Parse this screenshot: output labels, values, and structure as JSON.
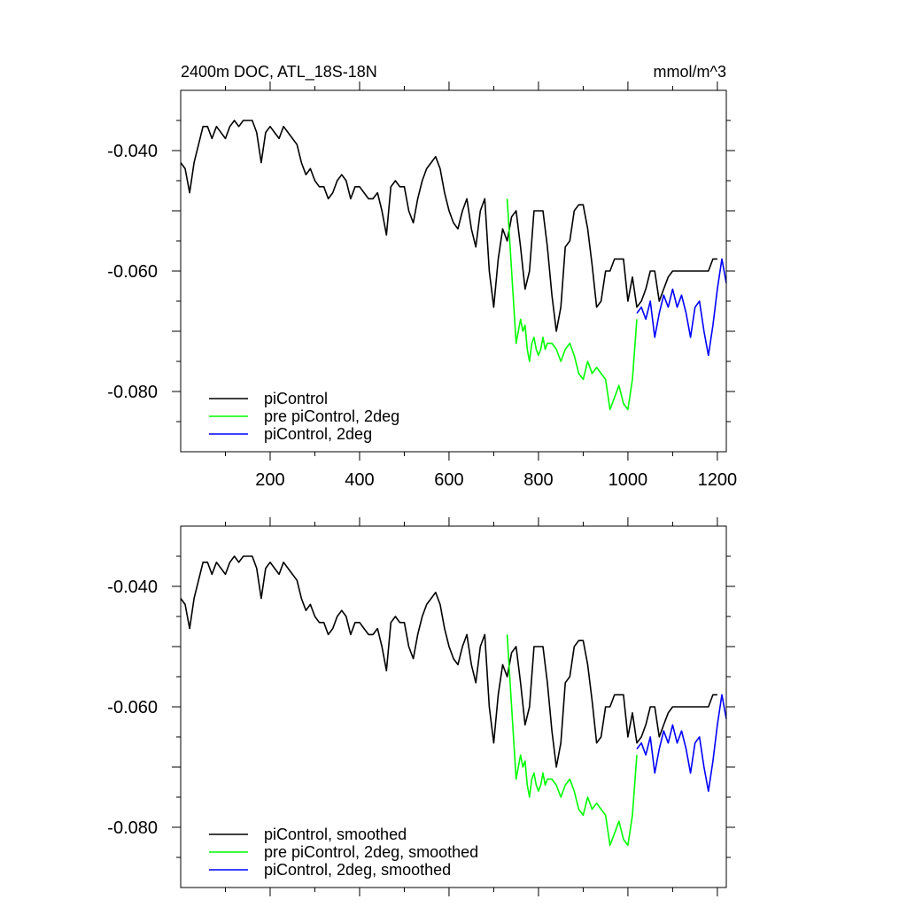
{
  "colors": {
    "piControl": "#000000",
    "pre_piControl_2deg": "#00ff00",
    "piControl_2deg": "#0000ff"
  },
  "chart_data": [
    {
      "type": "line",
      "title": "2400m DOC, ATL_18S-18N",
      "units": "mmol/m^3",
      "xlim": [
        0,
        1220
      ],
      "ylim": [
        -0.09,
        -0.03
      ],
      "x_ticks": [
        200,
        400,
        600,
        800,
        1000,
        1200
      ],
      "x_tick_labels": [
        "200",
        "400",
        "600",
        "800",
        "1000",
        "1200"
      ],
      "y_ticks": [
        -0.04,
        -0.06,
        -0.08
      ],
      "y_tick_labels": [
        "-0.040",
        "-0.060",
        "-0.080"
      ],
      "legend_position": "bottom-left",
      "series": [
        {
          "name": "piControl",
          "color": "#000000",
          "x": [
            0,
            10,
            20,
            30,
            50,
            60,
            70,
            80,
            100,
            110,
            120,
            130,
            140,
            150,
            160,
            170,
            180,
            190,
            200,
            210,
            220,
            230,
            240,
            250,
            260,
            270,
            280,
            290,
            300,
            310,
            320,
            330,
            340,
            350,
            360,
            370,
            380,
            390,
            400,
            410,
            420,
            430,
            440,
            450,
            460,
            470,
            480,
            490,
            500,
            510,
            520,
            530,
            540,
            550,
            560,
            570,
            580,
            590,
            600,
            610,
            620,
            630,
            640,
            650,
            660,
            670,
            680,
            690,
            700,
            710,
            720,
            730,
            740,
            750,
            760,
            770,
            780,
            790,
            800,
            810,
            820,
            830,
            840,
            850,
            860,
            870,
            880,
            890,
            900,
            910,
            920,
            930,
            940,
            950,
            960,
            970,
            980,
            990,
            1000,
            1010,
            1020,
            1030,
            1040,
            1050,
            1060,
            1070,
            1080,
            1090,
            1100,
            1110,
            1120,
            1130,
            1140,
            1150,
            1160,
            1170,
            1180,
            1190,
            1200
          ],
          "y": [
            -0.042,
            -0.043,
            -0.047,
            -0.042,
            -0.036,
            -0.036,
            -0.038,
            -0.036,
            -0.038,
            -0.036,
            -0.035,
            -0.036,
            -0.035,
            -0.035,
            -0.035,
            -0.037,
            -0.042,
            -0.037,
            -0.036,
            -0.037,
            -0.038,
            -0.036,
            -0.037,
            -0.038,
            -0.039,
            -0.042,
            -0.044,
            -0.043,
            -0.045,
            -0.046,
            -0.046,
            -0.048,
            -0.047,
            -0.045,
            -0.044,
            -0.045,
            -0.048,
            -0.046,
            -0.046,
            -0.047,
            -0.048,
            -0.048,
            -0.047,
            -0.05,
            -0.054,
            -0.046,
            -0.045,
            -0.046,
            -0.046,
            -0.05,
            -0.052,
            -0.048,
            -0.045,
            -0.043,
            -0.042,
            -0.041,
            -0.043,
            -0.047,
            -0.05,
            -0.052,
            -0.053,
            -0.05,
            -0.048,
            -0.053,
            -0.056,
            -0.05,
            -0.048,
            -0.06,
            -0.066,
            -0.058,
            -0.053,
            -0.055,
            -0.051,
            -0.05,
            -0.056,
            -0.063,
            -0.06,
            -0.05,
            -0.05,
            -0.05,
            -0.056,
            -0.064,
            -0.07,
            -0.066,
            -0.056,
            -0.055,
            -0.05,
            -0.049,
            -0.049,
            -0.053,
            -0.059,
            -0.066,
            -0.065,
            -0.06,
            -0.06,
            -0.058,
            -0.058,
            -0.058,
            -0.065,
            -0.061,
            -0.066,
            -0.065,
            -0.063,
            -0.06,
            -0.06,
            -0.065,
            -0.063,
            -0.061,
            -0.06,
            -0.06,
            -0.06,
            -0.06,
            -0.06,
            -0.06,
            -0.06,
            -0.06,
            -0.06,
            -0.058,
            -0.058
          ]
        },
        {
          "name": "pre piControl, 2deg",
          "color": "#00ff00",
          "x": [
            730,
            740,
            750,
            755,
            760,
            765,
            770,
            775,
            780,
            785,
            790,
            795,
            800,
            805,
            810,
            815,
            820,
            830,
            840,
            850,
            860,
            870,
            880,
            890,
            900,
            910,
            920,
            930,
            940,
            950,
            960,
            970,
            980,
            990,
            1000,
            1010,
            1020
          ],
          "y": [
            -0.048,
            -0.06,
            -0.072,
            -0.07,
            -0.068,
            -0.07,
            -0.069,
            -0.073,
            -0.075,
            -0.072,
            -0.071,
            -0.073,
            -0.074,
            -0.073,
            -0.071,
            -0.073,
            -0.072,
            -0.072,
            -0.073,
            -0.075,
            -0.073,
            -0.072,
            -0.074,
            -0.077,
            -0.078,
            -0.075,
            -0.077,
            -0.076,
            -0.077,
            -0.078,
            -0.083,
            -0.081,
            -0.079,
            -0.082,
            -0.083,
            -0.078,
            -0.068
          ]
        },
        {
          "name": "piControl, 2deg",
          "color": "#0000ff",
          "x": [
            1020,
            1030,
            1040,
            1050,
            1060,
            1070,
            1080,
            1090,
            1100,
            1110,
            1120,
            1130,
            1140,
            1150,
            1160,
            1170,
            1180,
            1190,
            1200,
            1210,
            1220
          ],
          "y": [
            -0.067,
            -0.066,
            -0.068,
            -0.065,
            -0.071,
            -0.067,
            -0.064,
            -0.066,
            -0.063,
            -0.066,
            -0.064,
            -0.067,
            -0.071,
            -0.066,
            -0.065,
            -0.07,
            -0.074,
            -0.069,
            -0.063,
            -0.058,
            -0.062
          ]
        }
      ]
    },
    {
      "type": "line",
      "title": "",
      "units": "",
      "xlim": [
        0,
        1220
      ],
      "ylim": [
        -0.09,
        -0.03
      ],
      "x_ticks": [
        200,
        400,
        600,
        800,
        1000,
        1200
      ],
      "x_tick_labels": [],
      "y_ticks": [
        -0.04,
        -0.06,
        -0.08
      ],
      "y_tick_labels": [
        "-0.040",
        "-0.060",
        "-0.080"
      ],
      "legend_position": "bottom-left",
      "series": [
        {
          "name": "piControl, smoothed",
          "color": "#000000",
          "x": [
            0,
            10,
            20,
            30,
            50,
            60,
            70,
            80,
            100,
            110,
            120,
            130,
            140,
            150,
            160,
            170,
            180,
            190,
            200,
            210,
            220,
            230,
            240,
            250,
            260,
            270,
            280,
            290,
            300,
            310,
            320,
            330,
            340,
            350,
            360,
            370,
            380,
            390,
            400,
            410,
            420,
            430,
            440,
            450,
            460,
            470,
            480,
            490,
            500,
            510,
            520,
            530,
            540,
            550,
            560,
            570,
            580,
            590,
            600,
            610,
            620,
            630,
            640,
            650,
            660,
            670,
            680,
            690,
            700,
            710,
            720,
            730,
            740,
            750,
            760,
            770,
            780,
            790,
            800,
            810,
            820,
            830,
            840,
            850,
            860,
            870,
            880,
            890,
            900,
            910,
            920,
            930,
            940,
            950,
            960,
            970,
            980,
            990,
            1000,
            1010,
            1020,
            1030,
            1040,
            1050,
            1060,
            1070,
            1080,
            1090,
            1100,
            1110,
            1120,
            1130,
            1140,
            1150,
            1160,
            1170,
            1180,
            1190,
            1200
          ],
          "y": [
            -0.042,
            -0.043,
            -0.047,
            -0.042,
            -0.036,
            -0.036,
            -0.038,
            -0.036,
            -0.038,
            -0.036,
            -0.035,
            -0.036,
            -0.035,
            -0.035,
            -0.035,
            -0.037,
            -0.042,
            -0.037,
            -0.036,
            -0.037,
            -0.038,
            -0.036,
            -0.037,
            -0.038,
            -0.039,
            -0.042,
            -0.044,
            -0.043,
            -0.045,
            -0.046,
            -0.046,
            -0.048,
            -0.047,
            -0.045,
            -0.044,
            -0.045,
            -0.048,
            -0.046,
            -0.046,
            -0.047,
            -0.048,
            -0.048,
            -0.047,
            -0.05,
            -0.054,
            -0.046,
            -0.045,
            -0.046,
            -0.046,
            -0.05,
            -0.052,
            -0.048,
            -0.045,
            -0.043,
            -0.042,
            -0.041,
            -0.043,
            -0.047,
            -0.05,
            -0.052,
            -0.053,
            -0.05,
            -0.048,
            -0.053,
            -0.056,
            -0.05,
            -0.048,
            -0.06,
            -0.066,
            -0.058,
            -0.053,
            -0.055,
            -0.051,
            -0.05,
            -0.056,
            -0.063,
            -0.06,
            -0.05,
            -0.05,
            -0.05,
            -0.056,
            -0.064,
            -0.07,
            -0.066,
            -0.056,
            -0.055,
            -0.05,
            -0.049,
            -0.049,
            -0.053,
            -0.059,
            -0.066,
            -0.065,
            -0.06,
            -0.06,
            -0.058,
            -0.058,
            -0.058,
            -0.065,
            -0.061,
            -0.066,
            -0.065,
            -0.063,
            -0.06,
            -0.06,
            -0.065,
            -0.063,
            -0.061,
            -0.06,
            -0.06,
            -0.06,
            -0.06,
            -0.06,
            -0.06,
            -0.06,
            -0.06,
            -0.06,
            -0.058,
            -0.058
          ]
        },
        {
          "name": "pre piControl, 2deg, smoothed",
          "color": "#00ff00",
          "x": [
            730,
            740,
            750,
            755,
            760,
            765,
            770,
            775,
            780,
            785,
            790,
            795,
            800,
            805,
            810,
            815,
            820,
            830,
            840,
            850,
            860,
            870,
            880,
            890,
            900,
            910,
            920,
            930,
            940,
            950,
            960,
            970,
            980,
            990,
            1000,
            1010,
            1020
          ],
          "y": [
            -0.048,
            -0.06,
            -0.072,
            -0.07,
            -0.068,
            -0.07,
            -0.069,
            -0.073,
            -0.075,
            -0.072,
            -0.071,
            -0.073,
            -0.074,
            -0.073,
            -0.071,
            -0.073,
            -0.072,
            -0.072,
            -0.073,
            -0.075,
            -0.073,
            -0.072,
            -0.074,
            -0.077,
            -0.078,
            -0.075,
            -0.077,
            -0.076,
            -0.077,
            -0.078,
            -0.083,
            -0.081,
            -0.079,
            -0.082,
            -0.083,
            -0.078,
            -0.068
          ]
        },
        {
          "name": "piControl, 2deg, smoothed",
          "color": "#0000ff",
          "x": [
            1020,
            1030,
            1040,
            1050,
            1060,
            1070,
            1080,
            1090,
            1100,
            1110,
            1120,
            1130,
            1140,
            1150,
            1160,
            1170,
            1180,
            1190,
            1200,
            1210,
            1220
          ],
          "y": [
            -0.067,
            -0.066,
            -0.068,
            -0.065,
            -0.071,
            -0.067,
            -0.064,
            -0.066,
            -0.063,
            -0.066,
            -0.064,
            -0.067,
            -0.071,
            -0.066,
            -0.065,
            -0.07,
            -0.074,
            -0.069,
            -0.063,
            -0.058,
            -0.062
          ]
        }
      ]
    }
  ]
}
